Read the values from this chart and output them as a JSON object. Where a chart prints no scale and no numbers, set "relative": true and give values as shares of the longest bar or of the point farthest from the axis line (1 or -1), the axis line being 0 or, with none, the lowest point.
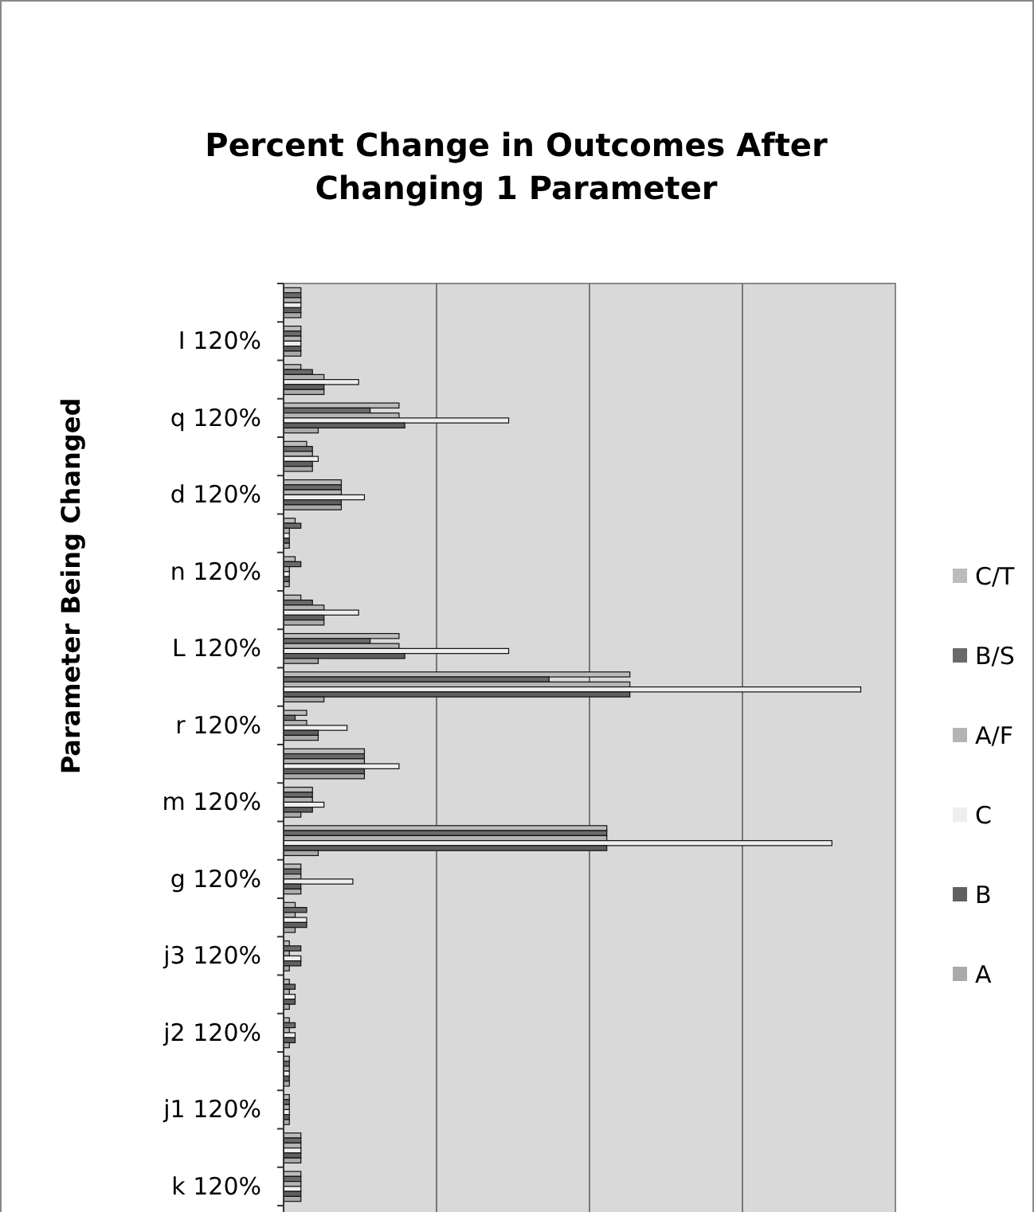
{
  "chart_data": {
    "type": "bar",
    "orientation": "horizontal",
    "relative": true,
    "title": "Percent Change in Outcomes After Changing 1 Parameter",
    "ylabel": "Parameter Being Changed",
    "grid": "x",
    "legend": "right",
    "categories": [
      null,
      "I 120%",
      null,
      "q 120%",
      null,
      "d 120%",
      null,
      "n 120%",
      null,
      "L 120%",
      null,
      "r 120%",
      null,
      "m 120%",
      null,
      "g 120%",
      null,
      "j3 120%",
      null,
      "j2 120%",
      null,
      "j1 120%",
      null,
      "k 120%"
    ],
    "series": [
      {
        "name": "C/T",
        "color": "#bcbcbc",
        "values": [
          0.03,
          0.03,
          0.03,
          0.2,
          0.04,
          0.1,
          0.02,
          0.02,
          0.03,
          0.2,
          0.6,
          0.04,
          0.14,
          0.05,
          0.56,
          0.03,
          0.02,
          0.01,
          0.01,
          0.01,
          0.01,
          0.01,
          0.03,
          0.03
        ]
      },
      {
        "name": "B/S",
        "color": "#6a6a6a",
        "values": [
          0.03,
          0.03,
          0.05,
          0.15,
          0.05,
          0.1,
          0.03,
          0.03,
          0.05,
          0.15,
          0.46,
          0.02,
          0.14,
          0.05,
          0.56,
          0.03,
          0.04,
          0.03,
          0.02,
          0.02,
          0.01,
          0.01,
          0.03,
          0.03
        ]
      },
      {
        "name": "A/F",
        "color": "#b4b4b4",
        "values": [
          0.03,
          0.03,
          0.07,
          0.2,
          0.05,
          0.1,
          0.01,
          0.01,
          0.07,
          0.2,
          0.6,
          0.04,
          0.14,
          0.05,
          0.56,
          0.03,
          0.02,
          0.01,
          0.01,
          0.01,
          0.01,
          0.01,
          0.03,
          0.03
        ]
      },
      {
        "name": "C",
        "color": "#eeeeee",
        "values": [
          0.03,
          0.03,
          0.13,
          0.39,
          0.06,
          0.14,
          0.01,
          0.01,
          0.13,
          0.39,
          1,
          0.11,
          0.2,
          0.07,
          0.95,
          0.12,
          0.04,
          0.03,
          0.02,
          0.02,
          0.01,
          0.01,
          0.03,
          0.03
        ]
      },
      {
        "name": "B",
        "color": "#606060",
        "values": [
          0.03,
          0.03,
          0.07,
          0.21,
          0.05,
          0.1,
          0.01,
          0.01,
          0.07,
          0.21,
          0.6,
          0.06,
          0.14,
          0.05,
          0.56,
          0.03,
          0.04,
          0.03,
          0.02,
          0.02,
          0.01,
          0.01,
          0.03,
          0.03
        ]
      },
      {
        "name": "A",
        "color": "#aaaaaa",
        "values": [
          0.03,
          0.03,
          0.07,
          0.06,
          0.05,
          0.1,
          0.01,
          0.01,
          0.07,
          0.06,
          0.07,
          0.06,
          0.14,
          0.03,
          0.06,
          0.03,
          0.02,
          0.01,
          0.01,
          0.01,
          0.01,
          0.01,
          0.03,
          0.03
        ]
      }
    ]
  }
}
